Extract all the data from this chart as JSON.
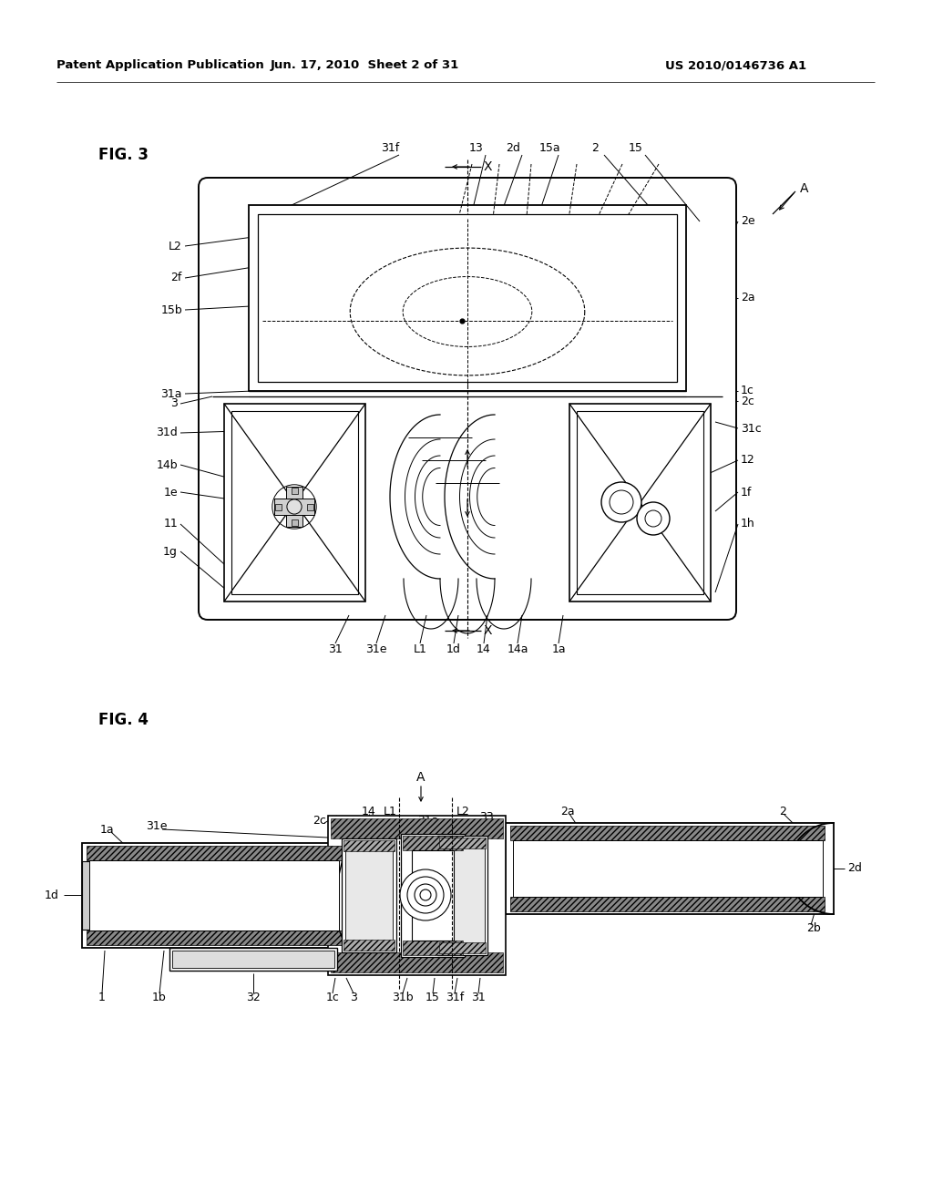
{
  "background_color": "#ffffff",
  "header_left": "Patent Application Publication",
  "header_center": "Jun. 17, 2010  Sheet 2 of 31",
  "header_right": "US 2010/0146736 A1",
  "fig3_label": "FIG. 3",
  "fig4_label": "FIG. 4",
  "text_color": "#000000",
  "line_color": "#000000"
}
